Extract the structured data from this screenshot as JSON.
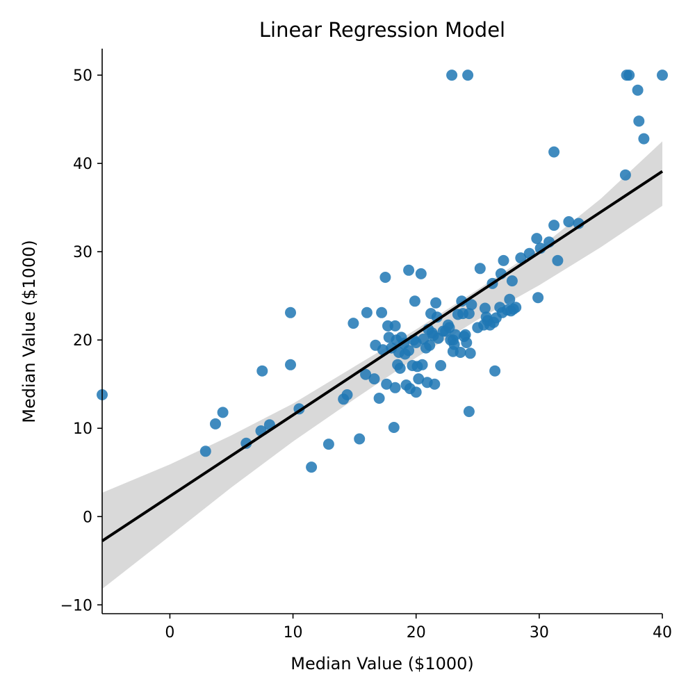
{
  "chart_data": {
    "type": "scatter",
    "title": "Linear Regression Model",
    "xlabel": "Median Value ($1000)",
    "ylabel": "Median Value ($1000)",
    "xlim": [
      -5.5,
      40
    ],
    "ylim": [
      -11,
      53
    ],
    "xticks": [
      0,
      10,
      20,
      30,
      40
    ],
    "yticks": [
      -10,
      0,
      10,
      20,
      30,
      40,
      50
    ],
    "grid": false,
    "legend": "none",
    "colors": {
      "points": "#1f77b4",
      "line": "#000000",
      "band": "#d9d9d9"
    },
    "regression": {
      "slope": 0.92,
      "intercept": 2.3
    },
    "confidence_band": {
      "x": [
        -5.5,
        0,
        5,
        10,
        15,
        20,
        25,
        30,
        35,
        40
      ],
      "lower": [
        -8.2,
        -2.2,
        3.3,
        8.5,
        13.3,
        18.0,
        22.3,
        26.2,
        30.5,
        35.2
      ],
      "upper": [
        2.7,
        5.9,
        9.2,
        12.8,
        17.0,
        21.2,
        25.7,
        30.4,
        36.0,
        42.5
      ]
    },
    "points": [
      [
        -5.5,
        13.8
      ],
      [
        2.9,
        7.4
      ],
      [
        3.7,
        10.5
      ],
      [
        4.3,
        11.8
      ],
      [
        6.2,
        8.3
      ],
      [
        7.4,
        9.7
      ],
      [
        7.5,
        16.5
      ],
      [
        8.1,
        10.4
      ],
      [
        9.8,
        23.1
      ],
      [
        9.8,
        17.2
      ],
      [
        10.5,
        12.2
      ],
      [
        11.5,
        5.6
      ],
      [
        12.9,
        8.2
      ],
      [
        14.1,
        13.3
      ],
      [
        14.4,
        13.8
      ],
      [
        14.9,
        21.9
      ],
      [
        15.4,
        8.8
      ],
      [
        15.9,
        16.1
      ],
      [
        16.0,
        23.1
      ],
      [
        16.6,
        15.6
      ],
      [
        16.7,
        19.4
      ],
      [
        17.0,
        13.4
      ],
      [
        17.2,
        23.1
      ],
      [
        17.3,
        18.9
      ],
      [
        17.5,
        27.1
      ],
      [
        17.6,
        15.0
      ],
      [
        17.7,
        21.6
      ],
      [
        17.8,
        20.3
      ],
      [
        18.0,
        19.1
      ],
      [
        18.2,
        10.1
      ],
      [
        18.3,
        14.6
      ],
      [
        18.3,
        21.6
      ],
      [
        18.4,
        20.0
      ],
      [
        18.5,
        17.2
      ],
      [
        18.6,
        18.6
      ],
      [
        18.7,
        16.8
      ],
      [
        18.8,
        20.3
      ],
      [
        19.0,
        19.6
      ],
      [
        19.1,
        18.4
      ],
      [
        19.2,
        14.9
      ],
      [
        19.4,
        27.9
      ],
      [
        19.4,
        18.8
      ],
      [
        19.5,
        14.5
      ],
      [
        19.7,
        17.1
      ],
      [
        19.8,
        20.0
      ],
      [
        19.9,
        24.4
      ],
      [
        20.0,
        14.1
      ],
      [
        20.0,
        19.7
      ],
      [
        20.1,
        17.0
      ],
      [
        20.2,
        15.6
      ],
      [
        20.4,
        27.5
      ],
      [
        20.5,
        17.2
      ],
      [
        20.6,
        20.1
      ],
      [
        20.8,
        19.1
      ],
      [
        20.9,
        15.2
      ],
      [
        21.0,
        21.2
      ],
      [
        21.1,
        19.4
      ],
      [
        21.2,
        23.0
      ],
      [
        21.3,
        20.8
      ],
      [
        21.4,
        20.5
      ],
      [
        21.5,
        15.0
      ],
      [
        21.6,
        24.2
      ],
      [
        21.7,
        22.6
      ],
      [
        21.8,
        20.2
      ],
      [
        22.0,
        17.1
      ],
      [
        22.2,
        21.0
      ],
      [
        22.4,
        21.0
      ],
      [
        22.6,
        21.7
      ],
      [
        22.7,
        21.4
      ],
      [
        22.8,
        20.0
      ],
      [
        22.9,
        50.0
      ],
      [
        23.0,
        18.7
      ],
      [
        23.0,
        20.0
      ],
      [
        23.1,
        19.5
      ],
      [
        23.2,
        20.6
      ],
      [
        23.4,
        22.9
      ],
      [
        23.6,
        18.6
      ],
      [
        23.7,
        24.4
      ],
      [
        23.8,
        23.0
      ],
      [
        23.9,
        20.4
      ],
      [
        24.0,
        20.6
      ],
      [
        24.1,
        19.7
      ],
      [
        24.2,
        50.0
      ],
      [
        24.3,
        23.0
      ],
      [
        24.3,
        11.9
      ],
      [
        24.4,
        18.5
      ],
      [
        24.5,
        24.0
      ],
      [
        25.0,
        21.4
      ],
      [
        25.2,
        28.1
      ],
      [
        25.5,
        21.7
      ],
      [
        25.6,
        23.6
      ],
      [
        25.7,
        22.6
      ],
      [
        25.8,
        22.2
      ],
      [
        26.0,
        21.7
      ],
      [
        26.2,
        26.4
      ],
      [
        26.3,
        22.0
      ],
      [
        26.4,
        16.5
      ],
      [
        26.5,
        22.5
      ],
      [
        26.8,
        23.7
      ],
      [
        26.9,
        27.5
      ],
      [
        27.0,
        23.1
      ],
      [
        27.1,
        29.0
      ],
      [
        27.4,
        23.4
      ],
      [
        27.6,
        24.6
      ],
      [
        27.7,
        23.3
      ],
      [
        27.8,
        26.7
      ],
      [
        27.9,
        23.5
      ],
      [
        28.1,
        23.7
      ],
      [
        28.5,
        29.3
      ],
      [
        29.2,
        29.8
      ],
      [
        29.8,
        31.5
      ],
      [
        29.9,
        24.8
      ],
      [
        30.1,
        30.4
      ],
      [
        30.8,
        31.1
      ],
      [
        31.2,
        33.0
      ],
      [
        31.2,
        41.3
      ],
      [
        31.5,
        29.0
      ],
      [
        32.4,
        33.4
      ],
      [
        33.2,
        33.2
      ],
      [
        37.0,
        38.7
      ],
      [
        37.1,
        50.0
      ],
      [
        37.3,
        50.0
      ],
      [
        38.0,
        48.3
      ],
      [
        38.1,
        44.8
      ],
      [
        38.5,
        42.8
      ],
      [
        40.0,
        50.0
      ]
    ]
  }
}
